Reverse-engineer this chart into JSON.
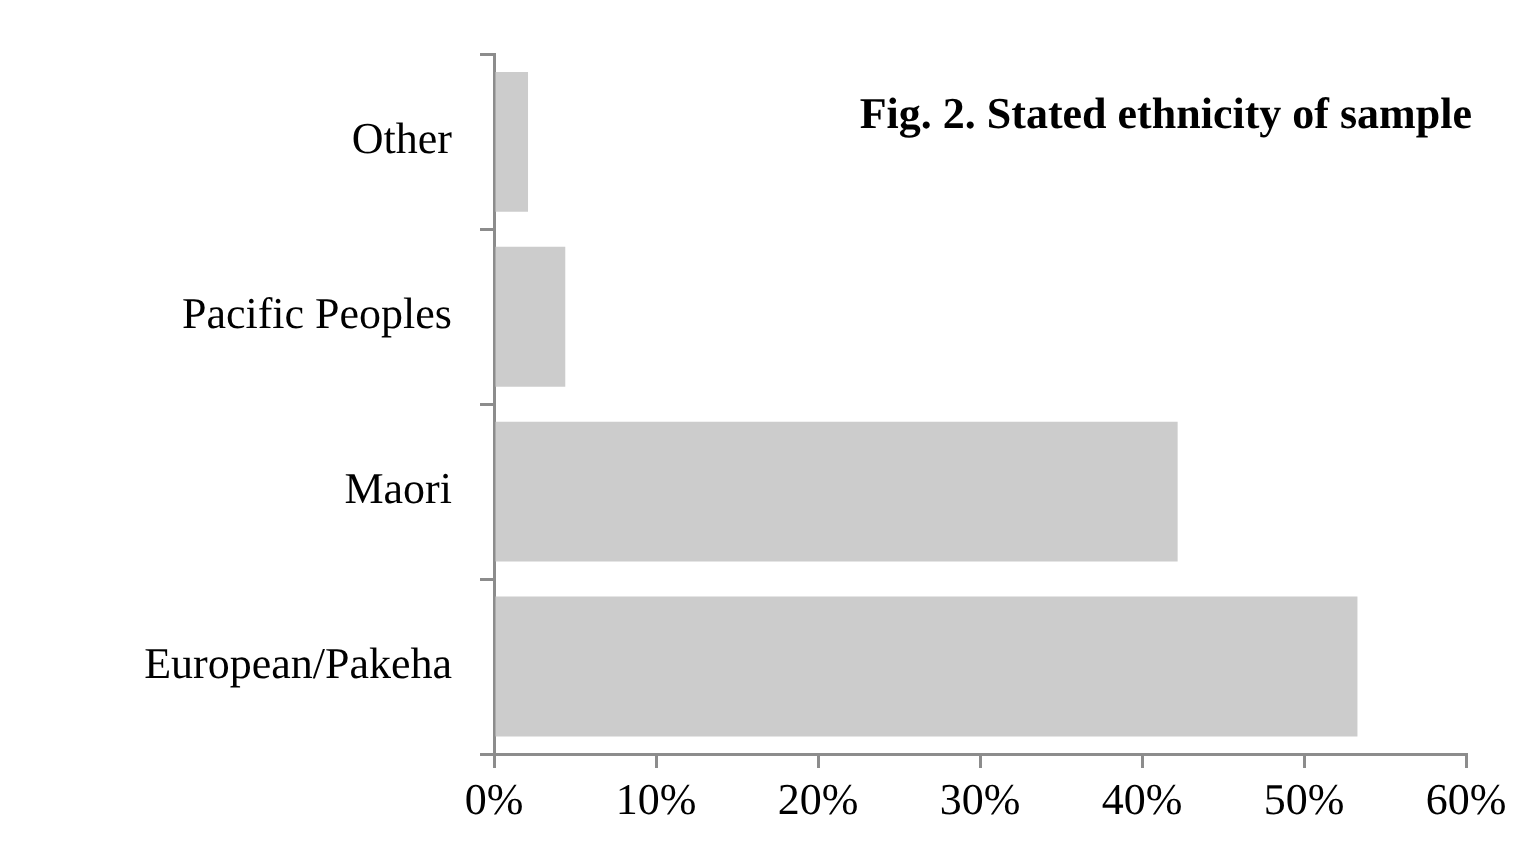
{
  "chart_data": {
    "type": "bar",
    "orientation": "horizontal",
    "title": "Fig. 2. Stated ethnicity of sample",
    "categories": [
      "Other",
      "Pacific Peoples",
      "Maori",
      "European/Pakeha"
    ],
    "values": [
      2.1,
      4.4,
      42.2,
      53.3
    ],
    "color": "#cccccc",
    "xlim": [
      0,
      60
    ],
    "xticks": [
      {
        "value": 0,
        "label": "0%"
      },
      {
        "value": 10,
        "label": "10%"
      },
      {
        "value": 20,
        "label": "20%"
      },
      {
        "value": 30,
        "label": "30%"
      },
      {
        "value": 40,
        "label": "40%"
      },
      {
        "value": 50,
        "label": "50%"
      },
      {
        "value": 60,
        "label": "60%"
      }
    ]
  }
}
